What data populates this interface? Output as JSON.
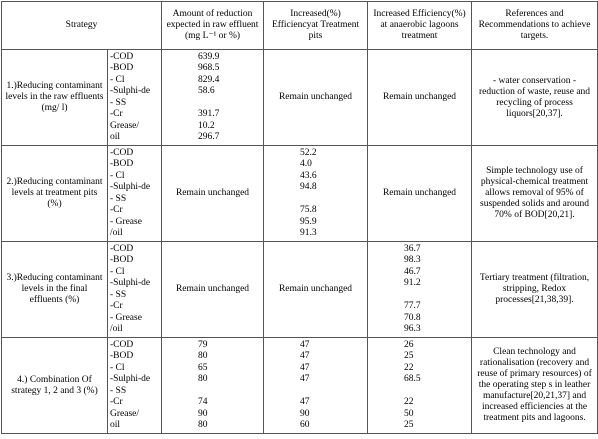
{
  "header": [
    "Strategy",
    "Amount of reduction expected in raw effluent (mg L⁻¹ or %)",
    "Increased(%) Efficiencyat Treatment pits",
    "Increased Efficiency(%) at anaerobic lagoons treatment",
    "References and Recommendations to achieve targets."
  ],
  "rows": [
    {
      "strategy": "1.)Reducing contaminant levels in the raw effluents (mg/ l)",
      "parameters": [
        "-COD",
        "-BOD",
        "- Cl",
        "-Sulphi-de",
        "- SS",
        "-Cr",
        "Grease/",
        "oil"
      ],
      "amount": [
        "639.9",
        "968.5",
        "829.4",
        "58.6",
        null,
        "391.7",
        "10.2",
        "296.7"
      ],
      "pits": "Remain unchanged",
      "lagoons": "Remain unchanged",
      "references": "- water conservation - reduction of waste, reuse and recycling of process liquors[20,37]."
    },
    {
      "strategy": "2.)Reducing contaminant levels at treatment pits (%)",
      "parameters": [
        "-COD",
        "-BOD",
        "- Cl",
        "-Sulphi-de",
        "- SS",
        "-Cr",
        "- Grease",
        "/oil"
      ],
      "amount": "Remain unchanged",
      "pits": [
        "52.2",
        "4.0",
        "43.6",
        "94.8",
        null,
        "75.8",
        "95.9",
        "91.3"
      ],
      "lagoons": "Remain unchanged",
      "references": "Simple technology use of physical-chemical treatment allows removal of 95% of suspended solids and around 70% of BOD[20,21]."
    },
    {
      "strategy": "3.)Reducing contaminant levels in the final effluents (%)",
      "parameters": [
        "-COD",
        "-BOD",
        "- Cl",
        "-Sulphi-de",
        "- SS",
        "-Cr",
        "- Grease",
        "/oil"
      ],
      "amount": "Remain unchanged",
      "pits": "Remain unchanged",
      "lagoons": [
        "36.7",
        "98.3",
        "46.7",
        "91.2",
        null,
        "77.7",
        "70.8",
        "96.3"
      ],
      "references": "Tertiary treatment (filtration, stripping, Redox processes[21,38,39]."
    },
    {
      "strategy": "4.) Combination Of strategy 1, 2 and 3 (%)",
      "parameters": [
        "-COD",
        "-BOD",
        "- Cl",
        "-Sulphi-de",
        "- SS",
        "-Cr",
        "Grease/",
        "oil"
      ],
      "amount": [
        "79",
        "80",
        "65",
        "80",
        null,
        "74",
        "90",
        "80"
      ],
      "pits": [
        "47",
        "47",
        "47",
        "47",
        null,
        "47",
        "90",
        "60"
      ],
      "lagoons": [
        "26",
        "25",
        "22",
        "68.5",
        null,
        "22",
        "50",
        "25"
      ],
      "references": "Clean technology and rationalisation (recovery and reuse of primary resources) of the operating step s in leather manufacture[20,21,37] and increased efficiencies at the treatment pits and lagoons."
    }
  ]
}
